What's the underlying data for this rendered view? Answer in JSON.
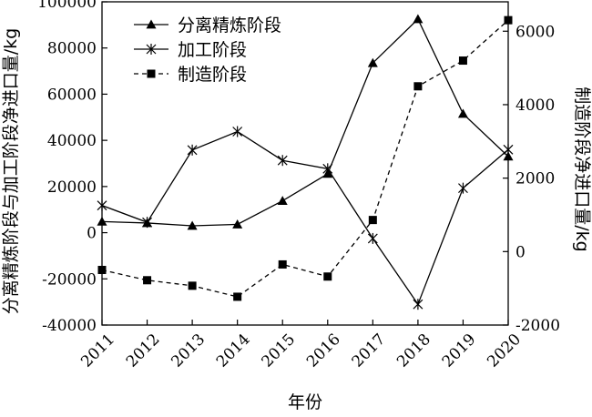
{
  "chart_data": {
    "type": "line",
    "x": [
      "2011",
      "2012",
      "2013",
      "2014",
      "2015",
      "2016",
      "2017",
      "2018",
      "2019",
      "2020"
    ],
    "xlabel": "年份",
    "ylabel_left": "分离精炼阶段与加工阶段净进口量/kg",
    "ylabel_right": "制造阶段净进口量/kg",
    "ylim_left": [
      -40000,
      100000
    ],
    "ylim_right": [
      -2000,
      6800
    ],
    "yticks_left": [
      -40000,
      -20000,
      0,
      20000,
      40000,
      60000,
      80000,
      100000
    ],
    "yticks_right": [
      -2000,
      0,
      2000,
      4000,
      6000
    ],
    "yticks_left_labels": [
      "-40000",
      "-20000",
      "0",
      "20000",
      "40000",
      "60000",
      "80000",
      "100000"
    ],
    "yticks_right_labels": [
      "-2000",
      "0",
      "2000",
      "4000",
      "6000"
    ],
    "grid": false,
    "legend_position": "top-left",
    "series": [
      {
        "name": "分离精炼阶段",
        "axis": "left",
        "marker": "triangle",
        "dash": "solid",
        "values": [
          4800,
          4200,
          3000,
          3600,
          13800,
          25500,
          73500,
          92500,
          51500,
          33000
        ]
      },
      {
        "name": "加工阶段",
        "axis": "left",
        "marker": "star",
        "dash": "solid",
        "values": [
          11800,
          4500,
          35800,
          43800,
          31300,
          27700,
          -2500,
          -31000,
          19300,
          36000
        ]
      },
      {
        "name": "制造阶段",
        "axis": "right",
        "marker": "square",
        "dash": "dashed",
        "values": [
          -500,
          -780,
          -930,
          -1230,
          -350,
          -680,
          860,
          4500,
          5200,
          6300
        ]
      }
    ]
  }
}
